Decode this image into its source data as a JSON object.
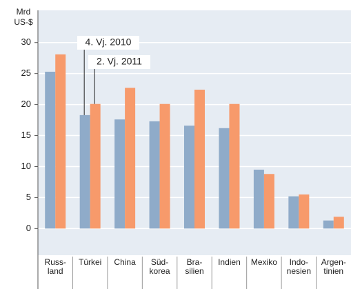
{
  "chart_data": {
    "type": "bar",
    "y_label": "Mrd\nUS-$",
    "categories": [
      "Russ-\nland",
      "Türkei",
      "China",
      "Süd-\nkorea",
      "Bra-\nsilien",
      "Indien",
      "Mexiko",
      "Indo-\nnesien",
      "Argen-\ntinien"
    ],
    "series": [
      {
        "name": "4. Vj. 2010",
        "color": "#8fabc9",
        "values": [
          25.3,
          18.3,
          17.6,
          17.3,
          16.6,
          16.2,
          9.5,
          5.2,
          1.3
        ]
      },
      {
        "name": "2. Vj. 2011",
        "color": "#f79a6b",
        "values": [
          28.1,
          20.1,
          22.7,
          20.1,
          22.4,
          20.1,
          8.8,
          5.5,
          1.9
        ]
      }
    ],
    "ylim": [
      -4.3,
      35.2
    ],
    "yticks": [
      0,
      5,
      10,
      15,
      20,
      25,
      30
    ],
    "grid": true
  }
}
